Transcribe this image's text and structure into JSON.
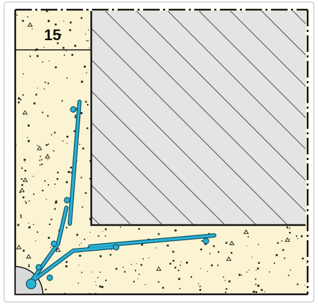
{
  "label": "15"
}
